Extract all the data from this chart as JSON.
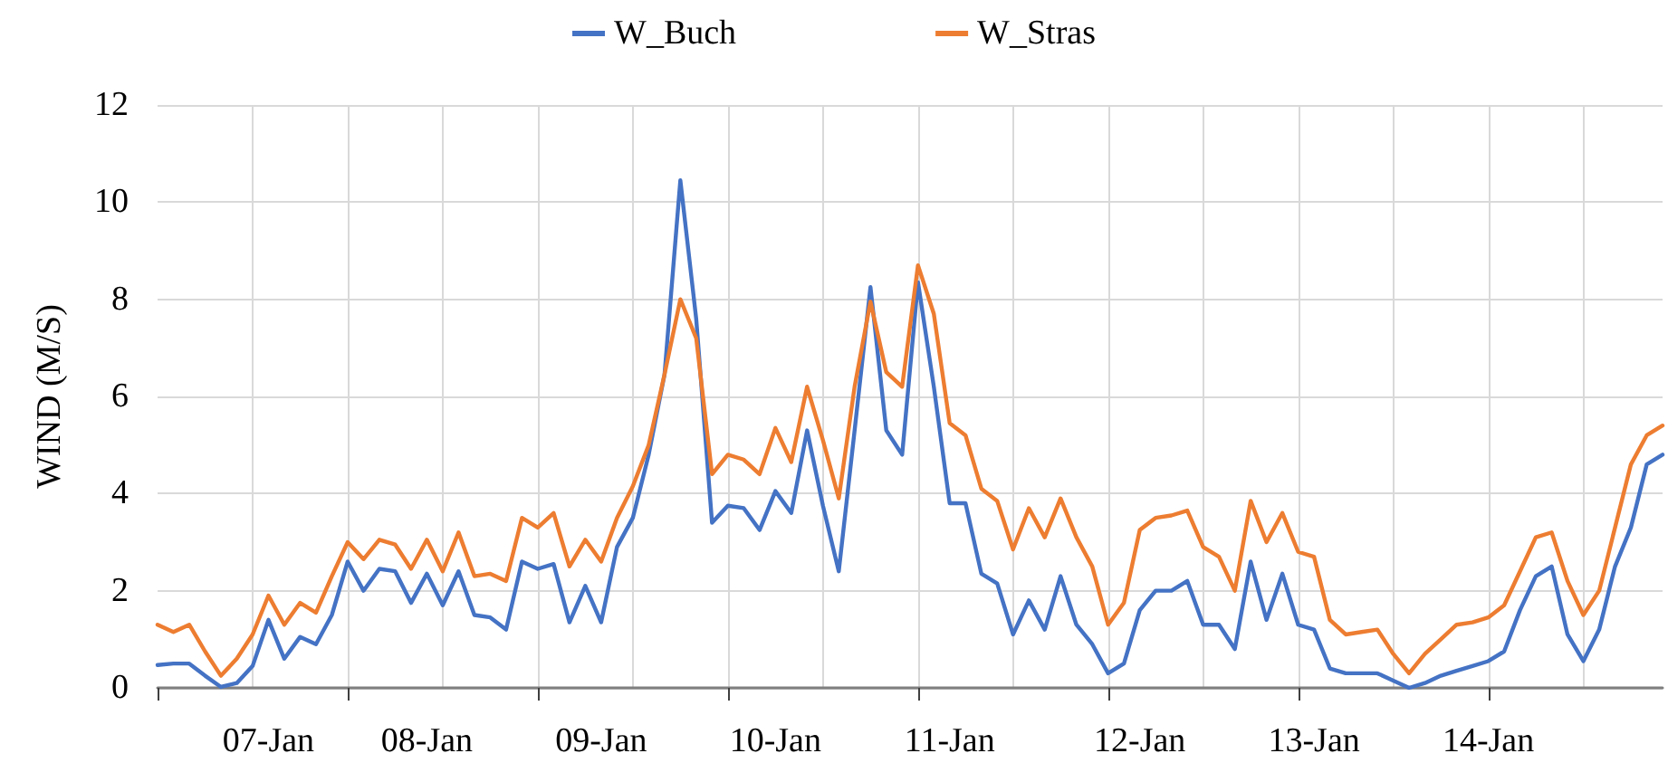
{
  "chart_data": {
    "type": "line",
    "ylabel": "WIND (M/S)",
    "categories": [
      null,
      null,
      null,
      null,
      null,
      null,
      null,
      "07-Jan",
      null,
      null,
      null,
      null,
      null,
      null,
      null,
      null,
      null,
      "08-Jan",
      null,
      null,
      null,
      null,
      null,
      null,
      null,
      null,
      null,
      null,
      "09-Jan",
      null,
      null,
      null,
      null,
      null,
      null,
      null,
      null,
      null,
      null,
      "10-Jan",
      null,
      null,
      null,
      null,
      null,
      null,
      null,
      null,
      null,
      null,
      "11-Jan",
      null,
      null,
      null,
      null,
      null,
      null,
      null,
      null,
      null,
      null,
      null,
      "12-Jan",
      null,
      null,
      null,
      null,
      null,
      null,
      null,
      null,
      null,
      null,
      "13-Jan",
      null,
      null,
      null,
      null,
      null,
      null,
      null,
      null,
      null,
      null,
      "14-Jan",
      null,
      null,
      null,
      null,
      null,
      null,
      null,
      null,
      null,
      null,
      null
    ],
    "series": [
      {
        "name": "W_Buch",
        "color": "#4472c4",
        "values": [
          0.47,
          0.5,
          0.5,
          0.25,
          0.02,
          0.1,
          0.45,
          1.4,
          0.6,
          1.05,
          0.9,
          1.5,
          2.6,
          2.0,
          2.45,
          2.4,
          1.75,
          2.35,
          1.7,
          2.4,
          1.5,
          1.45,
          1.2,
          2.6,
          2.45,
          2.55,
          1.35,
          2.1,
          1.35,
          2.9,
          3.5,
          4.8,
          6.45,
          10.45,
          7.6,
          3.4,
          3.75,
          3.7,
          3.25,
          4.05,
          3.6,
          5.3,
          3.75,
          2.4,
          5.3,
          8.25,
          5.3,
          4.8,
          8.35,
          6.2,
          3.8,
          3.8,
          2.35,
          2.15,
          1.1,
          1.8,
          1.2,
          2.3,
          1.3,
          0.9,
          0.3,
          0.5,
          1.6,
          2.0,
          2.0,
          2.2,
          1.3,
          1.3,
          0.8,
          2.6,
          1.4,
          2.35,
          1.3,
          1.2,
          0.4,
          0.3,
          0.3,
          0.3,
          0.15,
          0.0,
          0.1,
          0.25,
          0.35,
          0.45,
          0.55,
          0.75,
          1.6,
          2.3,
          2.5,
          1.1,
          0.55,
          1.2,
          2.5,
          3.3,
          4.6,
          4.8
        ]
      },
      {
        "name": "W_Stras",
        "color": "#ed7d31",
        "values": [
          1.3,
          1.15,
          1.3,
          0.75,
          0.25,
          0.6,
          1.1,
          1.9,
          1.3,
          1.75,
          1.55,
          2.3,
          3.0,
          2.65,
          3.05,
          2.95,
          2.45,
          3.05,
          2.4,
          3.2,
          2.3,
          2.35,
          2.2,
          3.5,
          3.3,
          3.6,
          2.5,
          3.05,
          2.6,
          3.5,
          4.15,
          5.0,
          6.45,
          8.0,
          7.2,
          4.4,
          4.8,
          4.7,
          4.4,
          5.35,
          4.65,
          6.2,
          5.1,
          3.9,
          6.2,
          7.95,
          6.5,
          6.2,
          8.7,
          7.7,
          5.45,
          5.2,
          4.1,
          3.85,
          2.85,
          3.7,
          3.1,
          3.9,
          3.1,
          2.5,
          1.3,
          1.75,
          3.25,
          3.5,
          3.55,
          3.65,
          2.9,
          2.7,
          2.0,
          3.85,
          3.0,
          3.6,
          2.8,
          2.7,
          1.4,
          1.1,
          1.15,
          1.2,
          0.7,
          0.3,
          0.7,
          1.0,
          1.3,
          1.35,
          1.45,
          1.7,
          2.4,
          3.1,
          3.2,
          2.2,
          1.5,
          2.0,
          3.3,
          4.6,
          5.2,
          5.4
        ]
      }
    ],
    "ylim": [
      0,
      12
    ],
    "yticks": [
      0,
      2,
      4,
      6,
      8,
      10,
      12
    ],
    "grid": true,
    "legend": "top",
    "marker": "none",
    "line_style": "solid"
  }
}
